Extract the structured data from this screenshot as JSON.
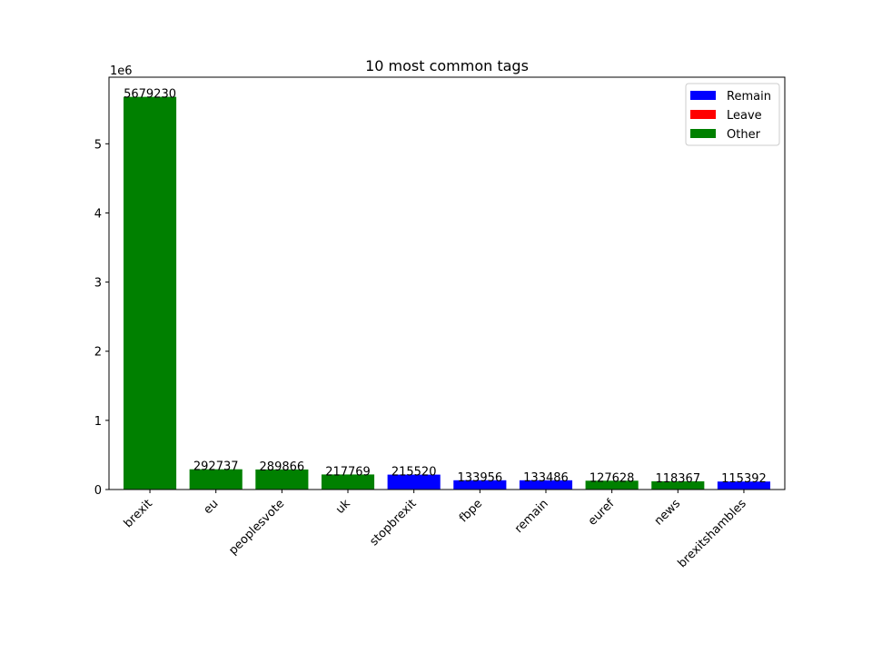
{
  "chart_data": {
    "type": "bar",
    "title": "10 most common tags",
    "xlabel": "",
    "ylabel": "",
    "y_multiplier_label": "1e6",
    "ylim": [
      0,
      5963191.5
    ],
    "yticks": [
      0,
      1,
      2,
      3,
      4,
      5
    ],
    "categories": [
      "brexit",
      "eu",
      "peoplesvote",
      "uk",
      "stopbrexit",
      "fbpe",
      "remain",
      "euref",
      "news",
      "brexitshambles"
    ],
    "values": [
      5679230,
      292737,
      289866,
      217769,
      215520,
      133956,
      133486,
      127628,
      118367,
      115392
    ],
    "groups": [
      "Other",
      "Other",
      "Other",
      "Other",
      "Remain",
      "Remain",
      "Remain",
      "Other",
      "Other",
      "Remain"
    ],
    "legend": [
      {
        "name": "Remain",
        "color": "#0000ff"
      },
      {
        "name": "Leave",
        "color": "#ff0000"
      },
      {
        "name": "Other",
        "color": "#008000"
      }
    ],
    "legend_position": "top-right",
    "grid": false
  }
}
